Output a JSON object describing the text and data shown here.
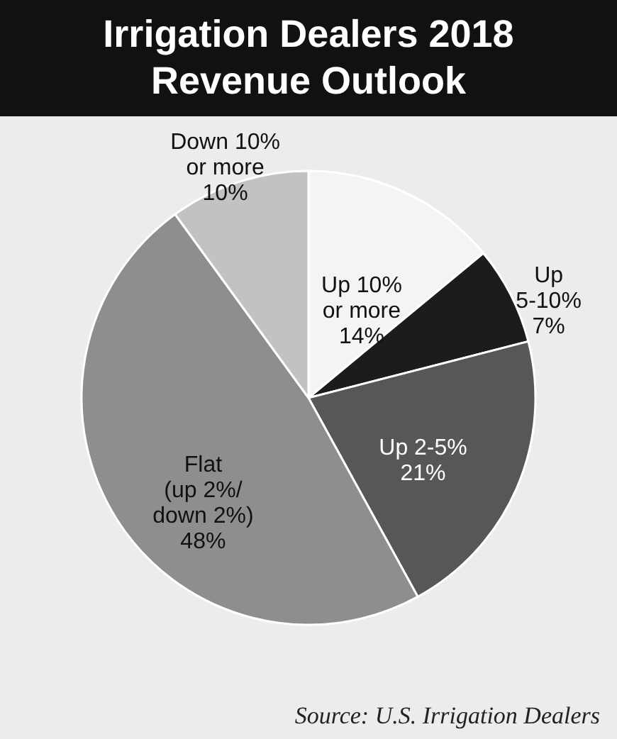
{
  "chart_data": {
    "type": "pie",
    "title": "Irrigation Dealers 2018 Revenue Outlook",
    "categories": [
      "Up 10%\nor more",
      "Up\n5-10%",
      "Up 2-5%",
      "Flat\n(up 2%/\ndown 2%)",
      "Down 10%\nor more"
    ],
    "values": [
      14,
      7,
      21,
      48,
      10
    ],
    "value_labels": [
      "14%",
      "7%",
      "21%",
      "48%",
      "10%"
    ],
    "colors": [
      "#f4f4f4",
      "#1c1c1c",
      "#575757",
      "#8e8e8e",
      "#c2c2c2"
    ],
    "annotations": [
      "Source: U.S. Irrigation Dealers"
    ]
  }
}
